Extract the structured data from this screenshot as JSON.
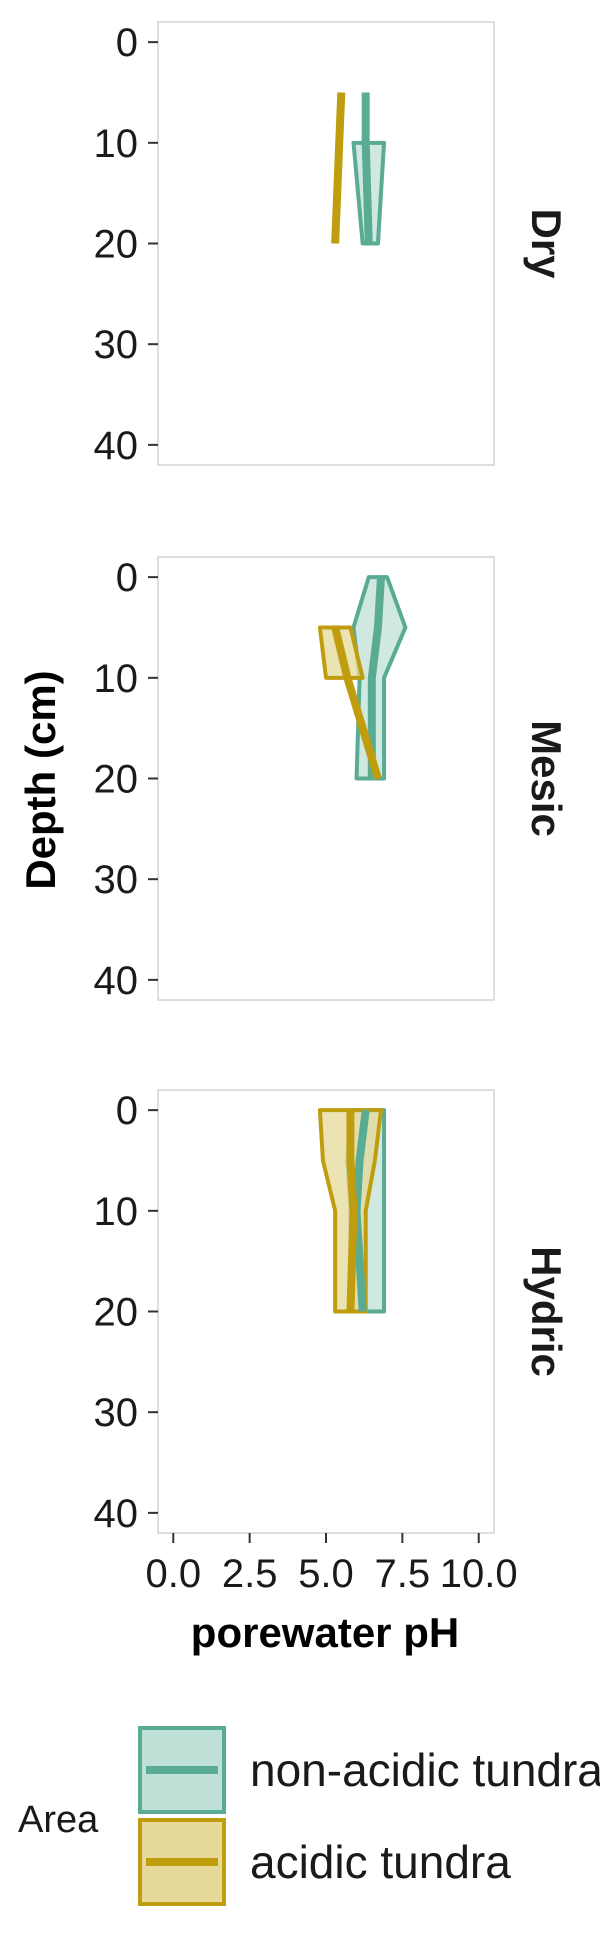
{
  "chart_data": {
    "type": "line",
    "xlabel": "porewater pH",
    "ylabel": "Depth (cm)",
    "xlim": [
      -0.5,
      10.5
    ],
    "ylim": [
      42,
      -2
    ],
    "y_reversed": true,
    "x_ticks": [
      0.0,
      2.5,
      5.0,
      7.5,
      10.0
    ],
    "x_tick_labels": [
      "0.0",
      "2.5",
      "5.0",
      "7.5",
      "10.0"
    ],
    "y_ticks": [
      0,
      10,
      20,
      30,
      40
    ],
    "y_tick_labels": [
      "0",
      "10",
      "20",
      "30",
      "40"
    ],
    "grid": false,
    "legend": {
      "title": "Area",
      "position": "bottom",
      "entries": [
        {
          "label": "non-acidic tundra",
          "color": "#5aab94",
          "fill": "#bfe0d6"
        },
        {
          "label": "acidic tundra",
          "color": "#bf9d0f",
          "fill": "#e6d99a"
        }
      ]
    },
    "panels": [
      {
        "name": "Dry",
        "series": [
          {
            "name": "non-acidic tundra",
            "mean": [
              {
                "depth": 5,
                "ph": 6.3
              },
              {
                "depth": 10,
                "ph": 6.3
              },
              {
                "depth": 20,
                "ph": 6.4
              }
            ],
            "ribbon": [
              {
                "depth": 10,
                "lo": 5.9,
                "hi": 6.9
              },
              {
                "depth": 20,
                "lo": 6.2,
                "hi": 6.7
              }
            ]
          },
          {
            "name": "acidic tundra",
            "mean": [
              {
                "depth": 5,
                "ph": 5.5
              },
              {
                "depth": 20,
                "ph": 5.3
              }
            ],
            "ribbon": []
          }
        ]
      },
      {
        "name": "Mesic",
        "series": [
          {
            "name": "non-acidic tundra",
            "mean": [
              {
                "depth": 0,
                "ph": 6.8
              },
              {
                "depth": 5,
                "ph": 6.7
              },
              {
                "depth": 10,
                "ph": 6.5
              },
              {
                "depth": 20,
                "ph": 6.5
              }
            ],
            "ribbon": [
              {
                "depth": 0,
                "lo": 6.4,
                "hi": 7.0
              },
              {
                "depth": 5,
                "lo": 5.9,
                "hi": 7.6
              },
              {
                "depth": 10,
                "lo": 6.1,
                "hi": 6.9
              },
              {
                "depth": 20,
                "lo": 6.0,
                "hi": 6.9
              }
            ]
          },
          {
            "name": "acidic tundra",
            "mean": [
              {
                "depth": 5,
                "ph": 5.3
              },
              {
                "depth": 10,
                "ph": 5.7
              },
              {
                "depth": 20,
                "ph": 6.7
              }
            ],
            "ribbon": [
              {
                "depth": 5,
                "lo": 4.8,
                "hi": 5.8
              },
              {
                "depth": 10,
                "lo": 5.0,
                "hi": 6.2
              }
            ]
          }
        ]
      },
      {
        "name": "Hydric",
        "series": [
          {
            "name": "non-acidic tundra",
            "mean": [
              {
                "depth": 0,
                "ph": 6.3
              },
              {
                "depth": 5,
                "ph": 6.1
              },
              {
                "depth": 10,
                "ph": 6.0
              },
              {
                "depth": 20,
                "ph": 6.2
              }
            ],
            "ribbon": [
              {
                "depth": 0,
                "lo": 5.8,
                "hi": 6.9
              },
              {
                "depth": 5,
                "lo": 5.7,
                "hi": 6.9
              },
              {
                "depth": 10,
                "lo": 5.8,
                "hi": 6.9
              },
              {
                "depth": 20,
                "lo": 5.8,
                "hi": 6.9
              }
            ]
          },
          {
            "name": "acidic tundra",
            "mean": [
              {
                "depth": 0,
                "ph": 5.8
              },
              {
                "depth": 5,
                "ph": 5.8
              },
              {
                "depth": 10,
                "ph": 5.9
              },
              {
                "depth": 20,
                "ph": 5.8
              }
            ],
            "ribbon": [
              {
                "depth": 0,
                "lo": 4.8,
                "hi": 6.8
              },
              {
                "depth": 5,
                "lo": 4.9,
                "hi": 6.6
              },
              {
                "depth": 10,
                "lo": 5.3,
                "hi": 6.3
              },
              {
                "depth": 20,
                "lo": 5.3,
                "hi": 6.3
              }
            ]
          }
        ]
      }
    ]
  }
}
